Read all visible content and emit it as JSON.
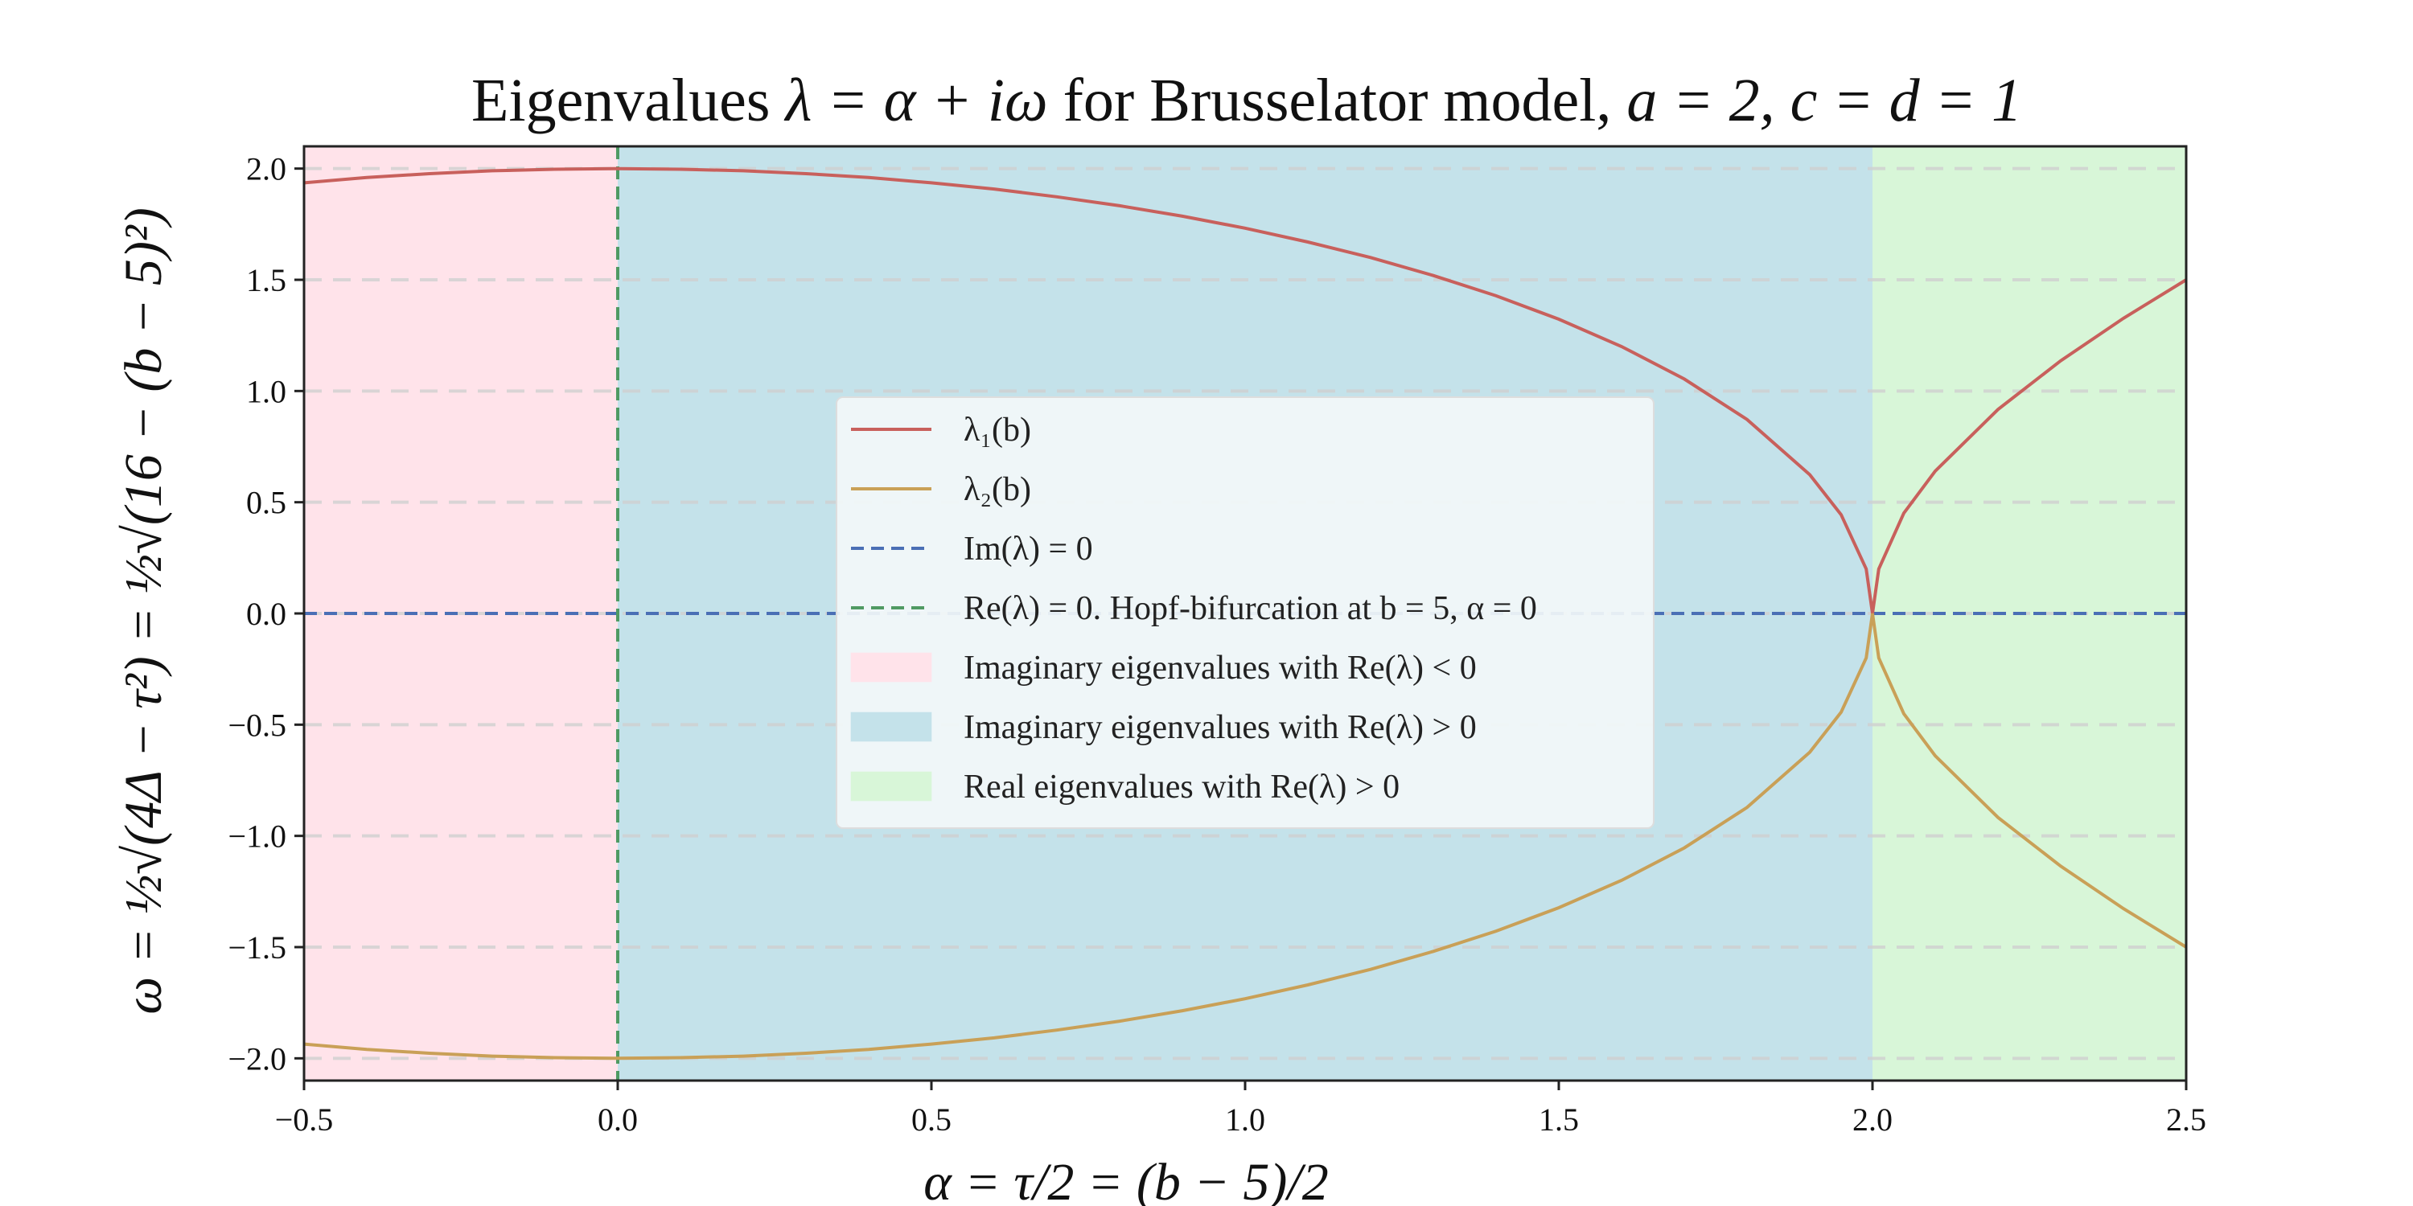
{
  "chart_data": {
    "type": "line",
    "title_prefix": "Eigenvalues ",
    "title_math": "λ = α + iω",
    "title_middle": " for Brusselator model, ",
    "title_params": "a = 2, c = d = 1",
    "xlabel": "α = τ/2 = (b − 5)/2",
    "ylabel": "ω = ½√(4Δ − τ²) = ½√(16 − (b − 5)²)",
    "xlim": [
      -0.5,
      2.5
    ],
    "ylim": [
      -2.1,
      2.1
    ],
    "x_ticks": [
      -0.5,
      0.0,
      0.5,
      1.0,
      1.5,
      2.0,
      2.5
    ],
    "x_tick_labels": [
      "−0.5",
      "0.0",
      "0.5",
      "1.0",
      "1.5",
      "2.0",
      "2.5"
    ],
    "y_ticks": [
      2.0,
      1.5,
      1.0,
      0.5,
      0.0,
      -0.5,
      -1.0,
      -1.5,
      -2.0
    ],
    "y_tick_labels": [
      "2.0",
      "1.5",
      "1.0",
      "0.5",
      "0.0",
      "−0.5",
      "−1.0",
      "−1.5",
      "−2.0"
    ],
    "grid": "horizontal dashed",
    "series": [
      {
        "name": "λ₁(b)",
        "color": "#c8605c",
        "x": [
          -0.5,
          -0.4,
          -0.3,
          -0.2,
          -0.1,
          0.0,
          0.1,
          0.2,
          0.3,
          0.4,
          0.5,
          0.6,
          0.7,
          0.8,
          0.9,
          1.0,
          1.1,
          1.2,
          1.3,
          1.4,
          1.5,
          1.6,
          1.7,
          1.8,
          1.9,
          1.95,
          1.99,
          2.0,
          2.01,
          2.05,
          2.1,
          2.2,
          2.3,
          2.4,
          2.5
        ],
        "y": [
          1.936,
          1.96,
          1.977,
          1.99,
          1.997,
          2.0,
          1.997,
          1.99,
          1.977,
          1.96,
          1.936,
          1.908,
          1.873,
          1.833,
          1.786,
          1.732,
          1.67,
          1.6,
          1.519,
          1.428,
          1.323,
          1.2,
          1.054,
          0.872,
          0.624,
          0.444,
          0.2,
          0.0,
          0.2,
          0.451,
          0.64,
          0.917,
          1.136,
          1.327,
          1.5
        ]
      },
      {
        "name": "λ₂(b)",
        "color": "#c9a057",
        "x": [
          -0.5,
          -0.4,
          -0.3,
          -0.2,
          -0.1,
          0.0,
          0.1,
          0.2,
          0.3,
          0.4,
          0.5,
          0.6,
          0.7,
          0.8,
          0.9,
          1.0,
          1.1,
          1.2,
          1.3,
          1.4,
          1.5,
          1.6,
          1.7,
          1.8,
          1.9,
          1.95,
          1.99,
          2.0,
          2.01,
          2.05,
          2.1,
          2.2,
          2.3,
          2.4,
          2.5
        ],
        "y": [
          -1.936,
          -1.96,
          -1.977,
          -1.99,
          -1.997,
          -2.0,
          -1.997,
          -1.99,
          -1.977,
          -1.96,
          -1.936,
          -1.908,
          -1.873,
          -1.833,
          -1.786,
          -1.732,
          -1.67,
          -1.6,
          -1.519,
          -1.428,
          -1.323,
          -1.2,
          -1.054,
          -0.872,
          -0.624,
          -0.444,
          -0.2,
          0.0,
          -0.2,
          -0.451,
          -0.64,
          -0.917,
          -1.136,
          -1.327,
          -1.5
        ]
      }
    ],
    "reference_lines": [
      {
        "name": "Im(λ) = 0",
        "orientation": "horizontal",
        "value": 0.0,
        "color": "#4a6fb5"
      },
      {
        "name": "Re(λ) = 0. Hopf-bifurcation at b = 5, α = 0",
        "orientation": "vertical",
        "value": 0.0,
        "color": "#4f9a63"
      }
    ],
    "regions": [
      {
        "name": "Imaginary eigenvalues with Re(λ) < 0",
        "x_range": [
          -0.5,
          0.0
        ],
        "color": "#ffe3ea"
      },
      {
        "name": "Imaginary eigenvalues with Re(λ) > 0",
        "x_range": [
          0.0,
          2.0
        ],
        "color": "#c4e2ea"
      },
      {
        "name": "Real eigenvalues with Re(λ) > 0",
        "x_range": [
          2.0,
          2.5
        ],
        "color": "#d8f6d8"
      }
    ],
    "legend_placement": "center"
  }
}
